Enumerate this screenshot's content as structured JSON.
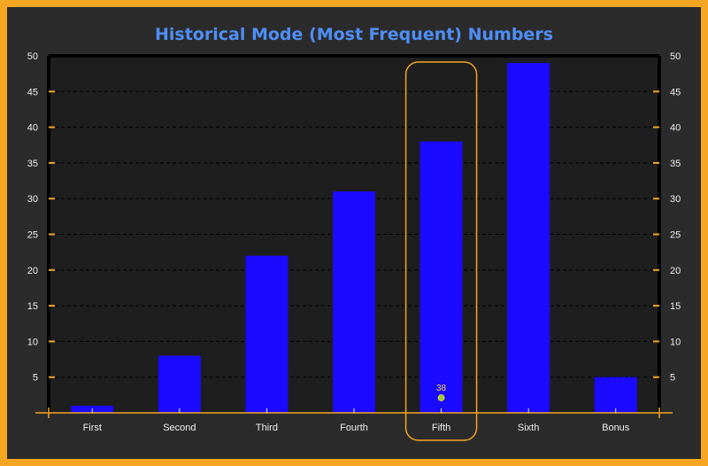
{
  "chart_data": {
    "type": "bar",
    "title": "Historical Mode (Most Frequent) Numbers",
    "categories": [
      "First",
      "Second",
      "Third",
      "Fourth",
      "Fifth",
      "Sixth",
      "Bonus"
    ],
    "values": [
      1,
      8,
      22,
      31,
      38,
      49,
      5
    ],
    "ylim": [
      0,
      50
    ],
    "yticks": [
      5,
      10,
      15,
      20,
      25,
      30,
      35,
      40,
      45,
      50
    ],
    "highlight": {
      "category": "Fifth",
      "value_label": "38"
    },
    "grid": true,
    "colors": {
      "bar": "#1a0aff",
      "accent": "#f5a623",
      "title": "#4f8ef7",
      "marker": "#9acd32"
    }
  }
}
